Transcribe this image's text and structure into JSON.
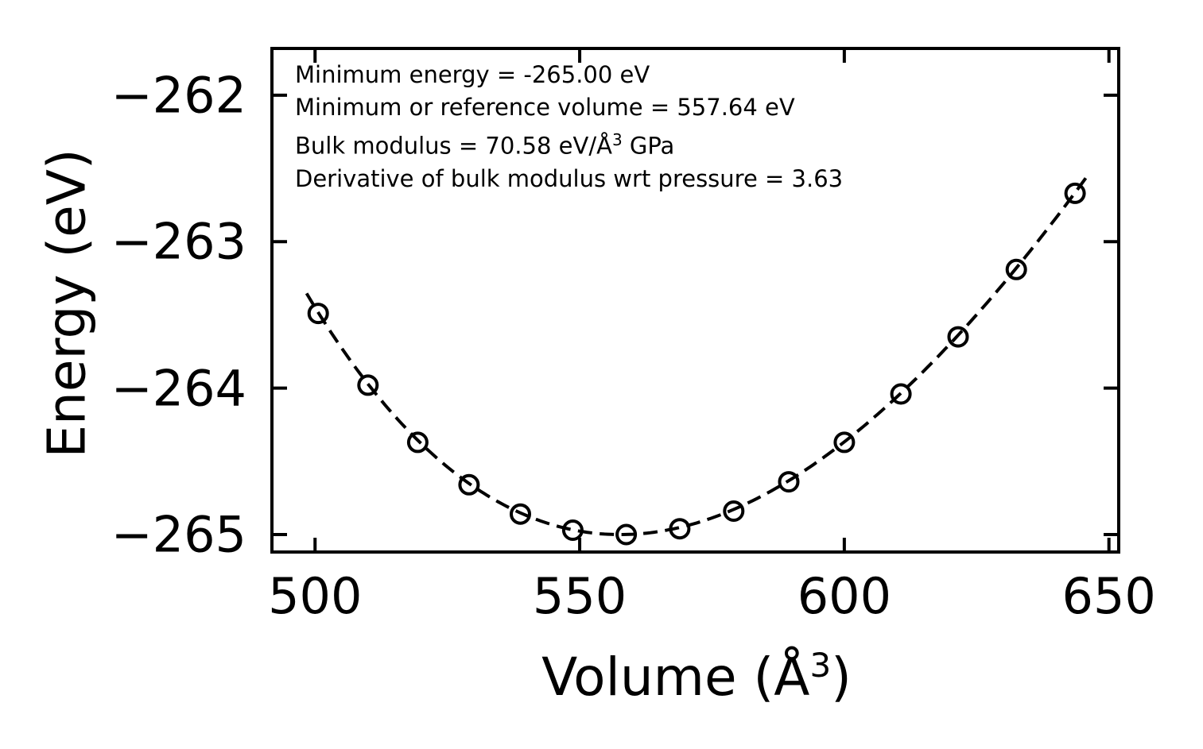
{
  "colors": {
    "background": "#ffffff",
    "ink": "#000000"
  },
  "annotation": {
    "line1": "Minimum energy = -265.00 eV",
    "line2": "Minimum or reference volume = 557.64 eV",
    "line3_base": "Bulk modulus = 70.58 eV/Å",
    "line3_sup": "3",
    "line3_suffix": " GPa",
    "line4": "Derivative of bulk modulus wrt pressure = 3.63"
  },
  "chart_data": {
    "type": "scatter",
    "title": "",
    "xlabel": "Volume (Å³)",
    "xlabel_parts": {
      "base": "Volume (Å",
      "sup": "3",
      "close": ")"
    },
    "ylabel": "Energy (eV)",
    "x_tick_values": [
      500,
      550,
      600,
      650
    ],
    "x_tick_labels": [
      "500",
      "550",
      "600",
      "650"
    ],
    "y_tick_values": [
      -262,
      -263,
      -264,
      -265
    ],
    "y_tick_labels": [
      "−262",
      "−263",
      "−264",
      "−265"
    ],
    "xlim": [
      491.7,
      652.0
    ],
    "ylim": [
      -265.13,
      -261.67
    ],
    "grid": false,
    "legend": "none",
    "series": [
      {
        "name": "calculated-energies",
        "style": "open-circle-markers",
        "x": [
          500.6,
          510.0,
          519.4,
          529.1,
          538.8,
          548.7,
          558.8,
          568.9,
          579.1,
          589.5,
          600.0,
          610.7,
          621.5,
          632.5,
          643.6
        ],
        "y": [
          -263.49,
          -263.98,
          -264.37,
          -264.66,
          -264.86,
          -264.97,
          -265.0,
          -264.96,
          -264.84,
          -264.64,
          -264.37,
          -264.04,
          -263.65,
          -263.19,
          -262.67
        ]
      },
      {
        "name": "eos-fit-curve",
        "style": "dashed-line",
        "model": "birch-murnaghan",
        "E0_eV": -265.0,
        "V0_A3": 557.64,
        "B0_GPa": 70.58,
        "B0_prime": 3.63,
        "v_range": [
          498.4,
          645.8
        ]
      }
    ]
  }
}
